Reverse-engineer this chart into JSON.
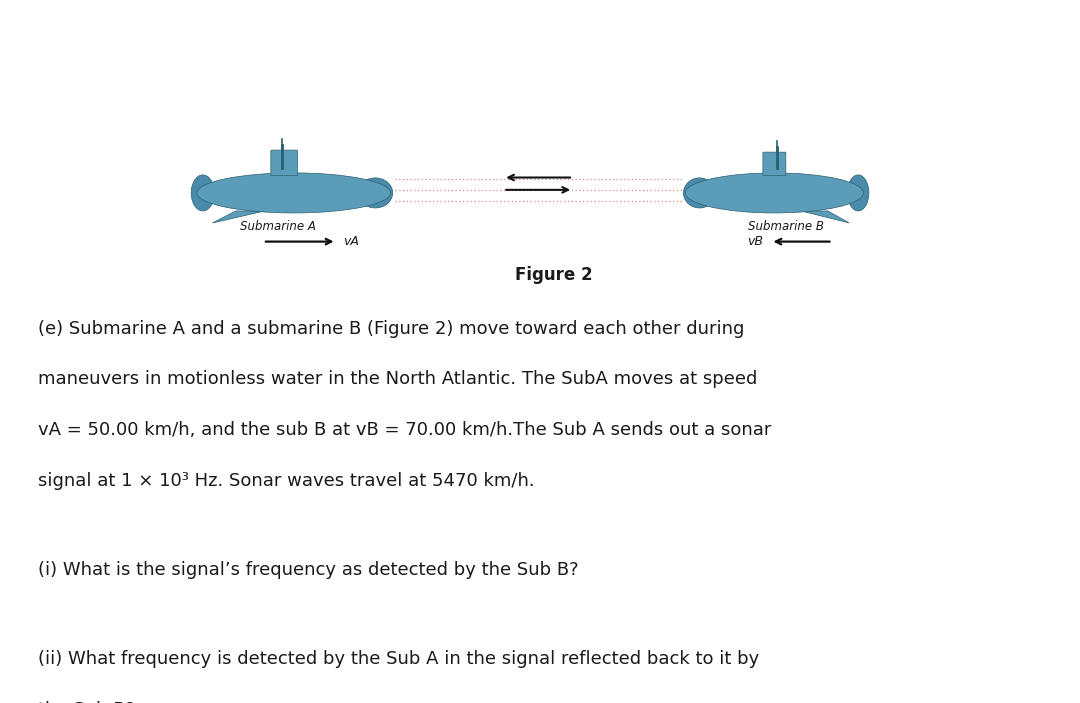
{
  "background_color": "#ffffff",
  "fig_width": 10.8,
  "fig_height": 7.03,
  "figure_label": "Figure 2",
  "sub_a_label": "Submarine A",
  "sub_b_label": "Submarine B",
  "va_label": "vA",
  "vb_label": "vB",
  "body_text_line1": "(e) Submarine A and a submarine B (Figure 2) move toward each other during",
  "body_text_line2": "maneuvers in motionless water in the North Atlantic. The SubA moves at speed",
  "body_text_line3": "vA = 50.00 km/h, and the sub B at vB = 70.00 km/h.The Sub A sends out a sonar",
  "body_text_line4": "signal at 1 × 10³ Hz. Sonar waves travel at 5470 km/h.",
  "question_i": "(i) What is the signal’s frequency as detected by the Sub B?",
  "question_ii_line1": "(ii) What frequency is detected by the Sub A in the signal reflected back to it by",
  "question_ii_line2": "the Sub B?",
  "sub_body_color": "#5b9db8",
  "sub_mid_color": "#4a8aaa",
  "sub_dark_color": "#2a6070",
  "sub_prop_color": "#4a8aaa",
  "sonar_color": "#cc7777",
  "arrow_color": "#111111",
  "text_color": "#1a1a1a"
}
